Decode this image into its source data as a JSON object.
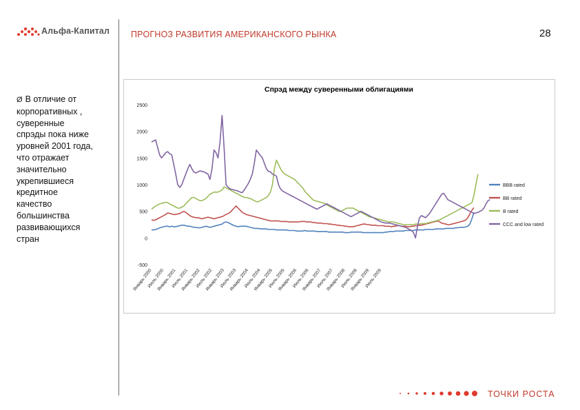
{
  "header": {
    "brand": "Альфа-Капитал",
    "title": "ПРОГНОЗ РАЗВИТИЯ АМЕРИКАНСКОГО РЫНКА",
    "page_number": "28",
    "brand_icon": "dots-logo-icon"
  },
  "sidebar": {
    "bullet_marker": "Ø",
    "lines": [
      "В отличие от",
      "корпоративных ,",
      "суверенные",
      "спрэды пока ниже",
      "уровней 2001 года,",
      "что отражает",
      "значительно",
      "укрепившиеся",
      "кредитное",
      "качество",
      "большинства",
      "развивающихся",
      "стран"
    ]
  },
  "footer": {
    "tagline": "ТОЧКИ РОСТА",
    "accent_color": "#e03a2f"
  },
  "chart_data": {
    "type": "line",
    "title": "Спрэд между суверенными облигациями",
    "xlabel": "",
    "ylabel": "",
    "ylim": [
      -500,
      2500
    ],
    "yticks": [
      -500,
      0,
      500,
      1000,
      1500,
      2000,
      2500
    ],
    "ytick_labels": [
      "-500",
      "0",
      "500",
      "1000",
      "1500",
      "2000",
      "2500"
    ],
    "x_tick_labels": [
      "Январь 2000",
      "Июль 2000",
      "Январь 2001",
      "Июль 2001",
      "Январь 2002",
      "Июль 2002",
      "Январь 2003",
      "Июль 2003",
      "Январь 2004",
      "Июль 2004",
      "Январь 2005",
      "Июль 2005",
      "Январь 2006",
      "Июль 2006",
      "Январь 2007",
      "Июль 2007",
      "Январь 2008",
      "Июль 2008",
      "Январь 2009",
      "Июль 2009"
    ],
    "x_tick_index": [
      0,
      6,
      12,
      18,
      24,
      30,
      36,
      42,
      48,
      54,
      60,
      66,
      72,
      78,
      84,
      90,
      96,
      102,
      108,
      114
    ],
    "grid": false,
    "legend_position": "right",
    "series": [
      {
        "name": "BBB rated",
        "color": "#4f81bd",
        "values": [
          150,
          150,
          160,
          170,
          190,
          200,
          210,
          220,
          220,
          210,
          220,
          210,
          210,
          220,
          230,
          240,
          240,
          230,
          220,
          220,
          210,
          200,
          200,
          190,
          190,
          200,
          210,
          220,
          210,
          200,
          210,
          220,
          230,
          240,
          250,
          260,
          290,
          300,
          290,
          270,
          250,
          230,
          220,
          210,
          220,
          220,
          220,
          220,
          210,
          200,
          190,
          180,
          180,
          180,
          170,
          170,
          170,
          170,
          160,
          160,
          160,
          160,
          150,
          150,
          150,
          150,
          150,
          150,
          140,
          140,
          140,
          140,
          130,
          130,
          130,
          130,
          140,
          130,
          130,
          130,
          130,
          130,
          120,
          120,
          120,
          120,
          120,
          120,
          110,
          110,
          110,
          110,
          110,
          110,
          110,
          110,
          100,
          100,
          100,
          110,
          110,
          110,
          110,
          110,
          110,
          100,
          100,
          100,
          100,
          100,
          100,
          100,
          100,
          100,
          100,
          100,
          110,
          110,
          120,
          120,
          120,
          130,
          130,
          130,
          130,
          130,
          140,
          140,
          140,
          140,
          140,
          150,
          150,
          150,
          150,
          150,
          160,
          160,
          160,
          160,
          160,
          170,
          170,
          170,
          170,
          170,
          180,
          180,
          180,
          180,
          180,
          190,
          190,
          200,
          200,
          200,
          210,
          220,
          260,
          360,
          480
        ]
      },
      {
        "name": "BB rated",
        "color": "#c0504d",
        "values": [
          340,
          330,
          340,
          360,
          380,
          400,
          420,
          440,
          470,
          460,
          450,
          440,
          440,
          450,
          460,
          480,
          500,
          480,
          450,
          420,
          400,
          390,
          380,
          380,
          370,
          360,
          370,
          380,
          390,
          380,
          370,
          360,
          370,
          380,
          390,
          400,
          420,
          440,
          460,
          480,
          520,
          560,
          600,
          560,
          520,
          480,
          460,
          440,
          430,
          420,
          410,
          400,
          390,
          380,
          370,
          360,
          350,
          340,
          330,
          320,
          320,
          320,
          320,
          320,
          310,
          310,
          310,
          310,
          300,
          300,
          300,
          300,
          300,
          300,
          310,
          310,
          310,
          300,
          300,
          300,
          290,
          290,
          280,
          280,
          280,
          270,
          270,
          270,
          260,
          260,
          250,
          250,
          240,
          240,
          230,
          230,
          220,
          220,
          210,
          210,
          210,
          220,
          230,
          240,
          250,
          260,
          260,
          250,
          250,
          240,
          240,
          240,
          230,
          230,
          230,
          230,
          220,
          220,
          220,
          210,
          220,
          220,
          230,
          230,
          220,
          220,
          220,
          210,
          210,
          220,
          220,
          230,
          230,
          240,
          240,
          250,
          260,
          270,
          280,
          290,
          300,
          310,
          320,
          300,
          280,
          270,
          260,
          250,
          250,
          260,
          270,
          280,
          290,
          300,
          310,
          320,
          340,
          380,
          450,
          520,
          570
        ]
      },
      {
        "name": "B rated",
        "color": "#9bbb59",
        "values": [
          540,
          570,
          600,
          620,
          640,
          650,
          660,
          670,
          660,
          640,
          620,
          600,
          580,
          560,
          560,
          580,
          600,
          640,
          680,
          720,
          760,
          760,
          740,
          720,
          700,
          700,
          720,
          740,
          780,
          820,
          840,
          860,
          860,
          860,
          880,
          900,
          960,
          940,
          920,
          900,
          880,
          860,
          840,
          820,
          800,
          780,
          760,
          760,
          750,
          740,
          720,
          700,
          680,
          680,
          700,
          720,
          740,
          760,
          800,
          860,
          1000,
          1300,
          1460,
          1380,
          1300,
          1240,
          1200,
          1180,
          1160,
          1140,
          1120,
          1100,
          1060,
          1020,
          980,
          940,
          880,
          840,
          800,
          760,
          720,
          700,
          690,
          680,
          670,
          660,
          650,
          620,
          600,
          580,
          560,
          540,
          520,
          500,
          500,
          520,
          540,
          560,
          560,
          560,
          560,
          540,
          520,
          500,
          480,
          460,
          440,
          420,
          400,
          390,
          380,
          370,
          360,
          350,
          340,
          330,
          320,
          310,
          300,
          300,
          300,
          290,
          280,
          270,
          260,
          250,
          250,
          250,
          250,
          250,
          250,
          260,
          260,
          260,
          270,
          270,
          270,
          280,
          290,
          300,
          310,
          320,
          330,
          340,
          360,
          380,
          400,
          420,
          440,
          460,
          480,
          500,
          520,
          540,
          560,
          580,
          600,
          620,
          640,
          660,
          800,
          1000,
          1200
        ]
      },
      {
        "name": "CCC and low rated",
        "color": "#8064a2",
        "values": [
          1800,
          1820,
          1840,
          1700,
          1560,
          1500,
          1550,
          1600,
          1620,
          1580,
          1560,
          1380,
          1200,
          1000,
          950,
          1000,
          1100,
          1200,
          1300,
          1380,
          1300,
          1240,
          1220,
          1240,
          1260,
          1250,
          1240,
          1220,
          1200,
          1100,
          1300,
          1650,
          1600,
          1500,
          1800,
          2300,
          1700,
          1000,
          950,
          920,
          910,
          900,
          890,
          880,
          860,
          850,
          900,
          960,
          1020,
          1100,
          1200,
          1400,
          1650,
          1600,
          1550,
          1500,
          1400,
          1300,
          1250,
          1240,
          1200,
          1180,
          1160,
          1000,
          920,
          880,
          860,
          840,
          820,
          800,
          780,
          760,
          740,
          720,
          700,
          680,
          660,
          640,
          620,
          600,
          580,
          560,
          540,
          560,
          580,
          600,
          620,
          640,
          620,
          600,
          580,
          560,
          540,
          520,
          500,
          480,
          460,
          440,
          420,
          400,
          420,
          440,
          460,
          480,
          500,
          480,
          460,
          440,
          420,
          400,
          380,
          360,
          340,
          320,
          300,
          290,
          280,
          280,
          280,
          270,
          260,
          250,
          240,
          230,
          220,
          210,
          200,
          180,
          160,
          140,
          100,
          0,
          220,
          380,
          420,
          400,
          380,
          420,
          460,
          520,
          580,
          640,
          700,
          760,
          820,
          840,
          780,
          720,
          700,
          680,
          660,
          640,
          620,
          600,
          580,
          560,
          540,
          520,
          500,
          480,
          460,
          470,
          480,
          500,
          520,
          560,
          640,
          700,
          720
        ]
      }
    ]
  }
}
